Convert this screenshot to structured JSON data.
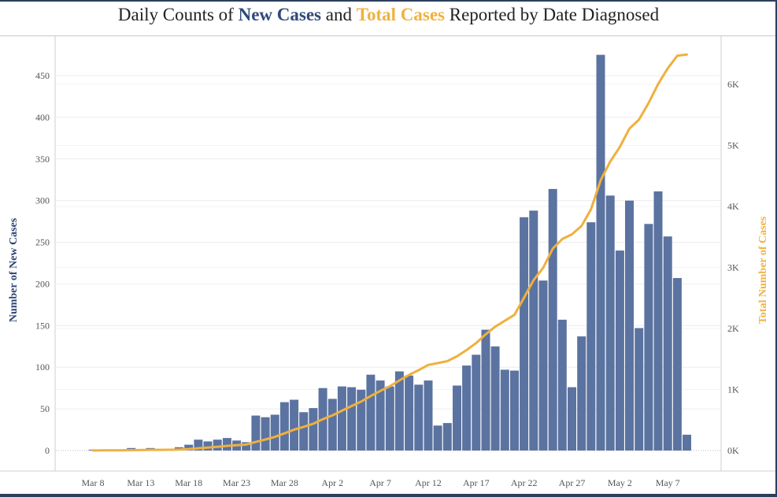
{
  "title": {
    "prefix": "Daily Counts of ",
    "new_cases": "New Cases",
    "middle": " and ",
    "total_cases": "Total Cases",
    "suffix": " Reported by Date Diagnosed"
  },
  "colors": {
    "bars": "#5b73a0",
    "line": "#f0b03e",
    "new_cases_title": "#2f4a7c",
    "total_cases_title": "#f0b23f",
    "gridline": "#ececec"
  },
  "chart_data": {
    "type": "bar",
    "title": "Daily Counts of New Cases and Total Cases Reported by Date Diagnosed",
    "xlabel": "",
    "ylabel": "Number of New Cases",
    "y2label": "Total Number of Cases",
    "ylim": [
      0,
      495
    ],
    "y2lim": [
      0,
      6390
    ],
    "yticks": [
      0,
      50,
      100,
      150,
      200,
      250,
      300,
      350,
      400,
      450
    ],
    "y2ticks": [
      0,
      1000,
      2000,
      3000,
      4000,
      5000,
      6000
    ],
    "y2tick_labels": [
      "0K",
      "1K",
      "2K",
      "3K",
      "4K",
      "5K",
      "6K"
    ],
    "grid": true,
    "xtick_labels": [
      "Mar 8",
      "Mar 13",
      "Mar 18",
      "Mar 23",
      "Mar 28",
      "Apr 2",
      "Apr 7",
      "Apr 12",
      "Apr 17",
      "Apr 22",
      "Apr 27",
      "May 2",
      "May 7"
    ],
    "xtick_index": [
      0,
      5,
      10,
      15,
      20,
      25,
      30,
      35,
      40,
      45,
      50,
      55,
      60
    ],
    "categories": [
      "Mar 8",
      "Mar 9",
      "Mar 10",
      "Mar 11",
      "Mar 12",
      "Mar 13",
      "Mar 14",
      "Mar 15",
      "Mar 16",
      "Mar 17",
      "Mar 18",
      "Mar 19",
      "Mar 20",
      "Mar 21",
      "Mar 22",
      "Mar 23",
      "Mar 24",
      "Mar 25",
      "Mar 26",
      "Mar 27",
      "Mar 28",
      "Mar 29",
      "Mar 30",
      "Mar 31",
      "Apr 1",
      "Apr 2",
      "Apr 3",
      "Apr 4",
      "Apr 5",
      "Apr 6",
      "Apr 7",
      "Apr 8",
      "Apr 9",
      "Apr 10",
      "Apr 11",
      "Apr 12",
      "Apr 13",
      "Apr 14",
      "Apr 15",
      "Apr 16",
      "Apr 17",
      "Apr 18",
      "Apr 19",
      "Apr 20",
      "Apr 21",
      "Apr 22",
      "Apr 23",
      "Apr 24",
      "Apr 25",
      "Apr 26",
      "Apr 27",
      "Apr 28",
      "Apr 29",
      "Apr 30",
      "May 1",
      "May 2",
      "May 3",
      "May 4",
      "May 5",
      "May 6",
      "May 7",
      "May 8",
      "May 9"
    ],
    "series": [
      {
        "name": "New Cases",
        "type": "bar",
        "axis": "left",
        "values": [
          1,
          1,
          1,
          1,
          3,
          1,
          3,
          1,
          1,
          4,
          7,
          13,
          11,
          13,
          15,
          12,
          10,
          42,
          40,
          43,
          58,
          61,
          46,
          51,
          75,
          62,
          77,
          76,
          73,
          91,
          84,
          77,
          95,
          90,
          79,
          84,
          30,
          33,
          78,
          102,
          115,
          145,
          125,
          97,
          96,
          280,
          288,
          204,
          314,
          157,
          76,
          137,
          274,
          475,
          306,
          240,
          300,
          147,
          272,
          311,
          257,
          207,
          19
        ]
      },
      {
        "name": "Total Cases",
        "type": "line",
        "axis": "right",
        "values": [
          1,
          2,
          3,
          4,
          7,
          8,
          11,
          12,
          13,
          17,
          24,
          37,
          48,
          61,
          76,
          88,
          98,
          140,
          180,
          223,
          281,
          342,
          388,
          439,
          514,
          576,
          653,
          729,
          802,
          893,
          977,
          1054,
          1149,
          1239,
          1318,
          1402,
          1432,
          1465,
          1543,
          1645,
          1760,
          1905,
          2030,
          2127,
          2223,
          2503,
          2791,
          2995,
          3309,
          3466,
          3542,
          3679,
          3953,
          4428,
          4734,
          4974,
          5274,
          5421,
          5693,
          6004,
          6261,
          6468,
          6487
        ]
      }
    ]
  }
}
